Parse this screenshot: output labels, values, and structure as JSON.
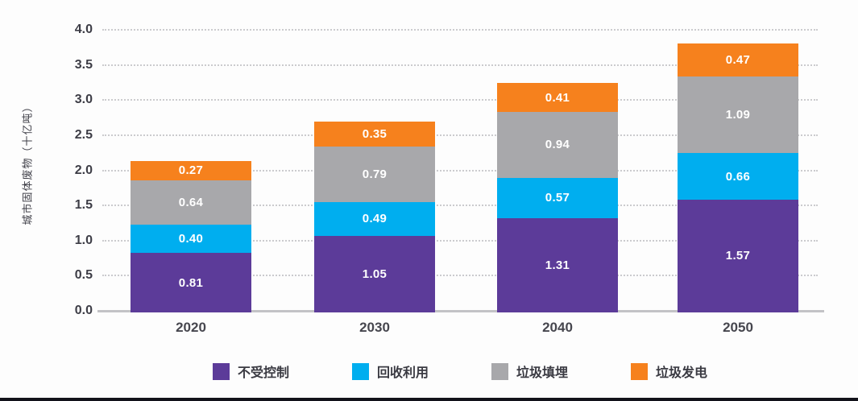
{
  "chart_data": {
    "type": "bar",
    "stacked": true,
    "categories": [
      "2020",
      "2030",
      "2040",
      "2050"
    ],
    "series": [
      {
        "name": "不受控制",
        "color": "#5c3b99",
        "values": [
          0.81,
          1.05,
          1.31,
          1.57
        ],
        "labels": [
          "0.81",
          "1.05",
          "1.31",
          "1.57"
        ]
      },
      {
        "name": "回收利用",
        "color": "#00aeef",
        "values": [
          0.4,
          0.49,
          0.57,
          0.66
        ],
        "labels": [
          "0.40",
          "0.49",
          "0.57",
          "0.66"
        ]
      },
      {
        "name": "垃圾填埋",
        "color": "#a8a8ab",
        "values": [
          0.64,
          0.79,
          0.94,
          1.09
        ],
        "labels": [
          "0.64",
          "0.79",
          "0.94",
          "1.09"
        ]
      },
      {
        "name": "垃圾发电",
        "color": "#f6811d",
        "values": [
          0.27,
          0.35,
          0.41,
          0.47
        ],
        "labels": [
          "0.27",
          "0.35",
          "0.41",
          "0.47"
        ]
      }
    ],
    "title": "",
    "xlabel": "",
    "ylabel": "城市固体废物（十亿吨）",
    "ylim": [
      0.0,
      4.0
    ],
    "ytick_step": 0.5,
    "yticks": [
      "0.0",
      "0.5",
      "1.0",
      "1.5",
      "2.0",
      "2.5",
      "3.0",
      "3.5",
      "4.0"
    ],
    "grid": "horizontal-dotted",
    "legend_position": "bottom",
    "value_label_color": "#ffffff"
  }
}
